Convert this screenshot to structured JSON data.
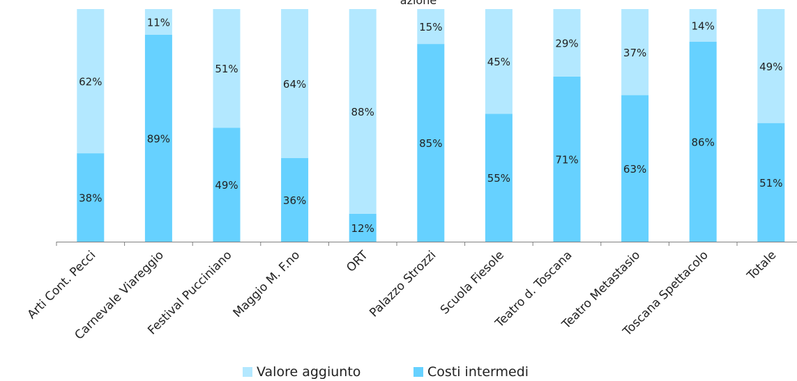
{
  "chart_data": {
    "type": "bar",
    "stacked": true,
    "title": "",
    "title_fragment": "azione",
    "categories": [
      "Arti Cont. Pecci",
      "Carnevale Viareggio",
      "Festival Pucciniano",
      "Maggio M. F.no",
      "ORT",
      "Palazzo Strozzi",
      "Scuola Fiesole",
      "Teatro d. Toscana",
      "Teatro Metastasio",
      "Toscana Spettacolo",
      "Totale"
    ],
    "series": [
      {
        "name": "Costi intermedi",
        "values": [
          38,
          89,
          49,
          36,
          12,
          85,
          55,
          71,
          63,
          86,
          51
        ],
        "labels": [
          "38%",
          "89%",
          "49%",
          "36%",
          "12%",
          "85%",
          "55%",
          "71%",
          "63%",
          "86%",
          "51%"
        ],
        "color": "#66d1ff"
      },
      {
        "name": "Valore aggiunto",
        "values": [
          62,
          11,
          51,
          64,
          88,
          15,
          45,
          29,
          37,
          14,
          49
        ],
        "labels": [
          "62%",
          "11%",
          "51%",
          "64%",
          "88%",
          "15%",
          "45%",
          "29%",
          "37%",
          "14%",
          "49%"
        ],
        "color": "#b3e8ff"
      }
    ],
    "ylim": [
      0,
      100
    ],
    "unit": "%",
    "grid": false,
    "legend_position": "bottom"
  },
  "legend": [
    {
      "label": "Valore aggiunto",
      "color": "#b3e8ff"
    },
    {
      "label": "Costi intermedi",
      "color": "#66d1ff"
    }
  ]
}
